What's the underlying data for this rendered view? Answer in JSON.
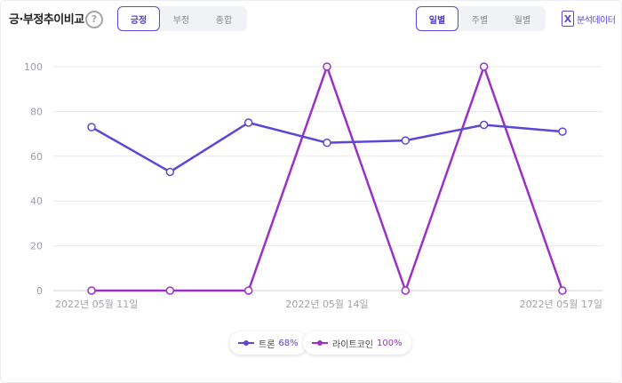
{
  "header": {
    "title": "긍·부정추이비교",
    "help_icon": "?",
    "sentiment_tabs": [
      {
        "label": "긍정",
        "active": true
      },
      {
        "label": "부정",
        "active": false
      },
      {
        "label": "종합",
        "active": false
      }
    ],
    "period_tabs": [
      {
        "label": "일별",
        "active": true
      },
      {
        "label": "주별",
        "active": false
      },
      {
        "label": "월별",
        "active": false
      }
    ],
    "export": {
      "icon": "excel-icon",
      "icon_glyph": "X",
      "label": "분석데이터"
    }
  },
  "legend": [
    {
      "name": "트론",
      "percent": "68%",
      "color": "#5b47d6"
    },
    {
      "name": "라이트코인",
      "percent": "100%",
      "color": "#9b30c4"
    }
  ],
  "chart_data": {
    "type": "line",
    "x": [
      "2022년 05월 11일",
      "2022년 05월 12일",
      "2022년 05월 13일",
      "2022년 05월 14일",
      "2022년 05월 15일",
      "2022년 05월 16일",
      "2022년 05월 17일"
    ],
    "xtick_labels": [
      "2022년 05월 11일",
      "2022년 05월 14일",
      "2022년 05월 17일"
    ],
    "xtick_indices": [
      0,
      3,
      6
    ],
    "ylim": [
      0,
      100
    ],
    "yticks": [
      0,
      20,
      40,
      60,
      80,
      100
    ],
    "grid": true,
    "legend_position": "bottom-center",
    "series": [
      {
        "name": "트론",
        "color": "#5b47d6",
        "values": [
          73,
          53,
          75,
          66,
          67,
          74,
          71
        ]
      },
      {
        "name": "라이트코인",
        "color": "#9b30c4",
        "values": [
          0,
          0,
          0,
          100,
          0,
          100,
          0
        ]
      }
    ]
  }
}
